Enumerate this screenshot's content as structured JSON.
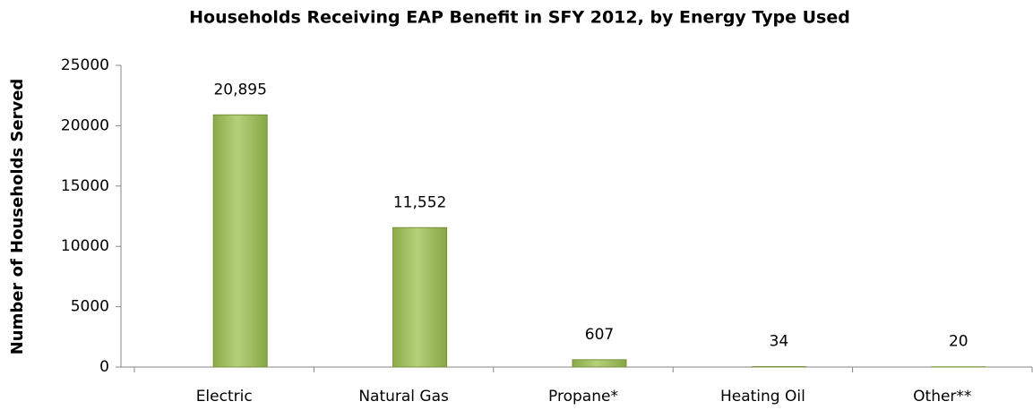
{
  "chart_data": {
    "type": "bar",
    "title": "Households Receiving EAP Benefit in SFY 2012, by Energy Type Used",
    "y_label": "Number of Households Served",
    "categories": [
      "Electric",
      "Natural Gas",
      "Propane*",
      "Heating Oil",
      "Other**"
    ],
    "values": [
      20895,
      11552,
      607,
      34,
      20
    ],
    "value_labels": [
      "20,895",
      "11,552",
      "607",
      "34",
      "20"
    ],
    "color": "#9bbb59",
    "ylim": [
      0,
      25000
    ],
    "yticks": [
      0,
      5000,
      10000,
      15000,
      20000,
      25000
    ],
    "grid": false
  }
}
